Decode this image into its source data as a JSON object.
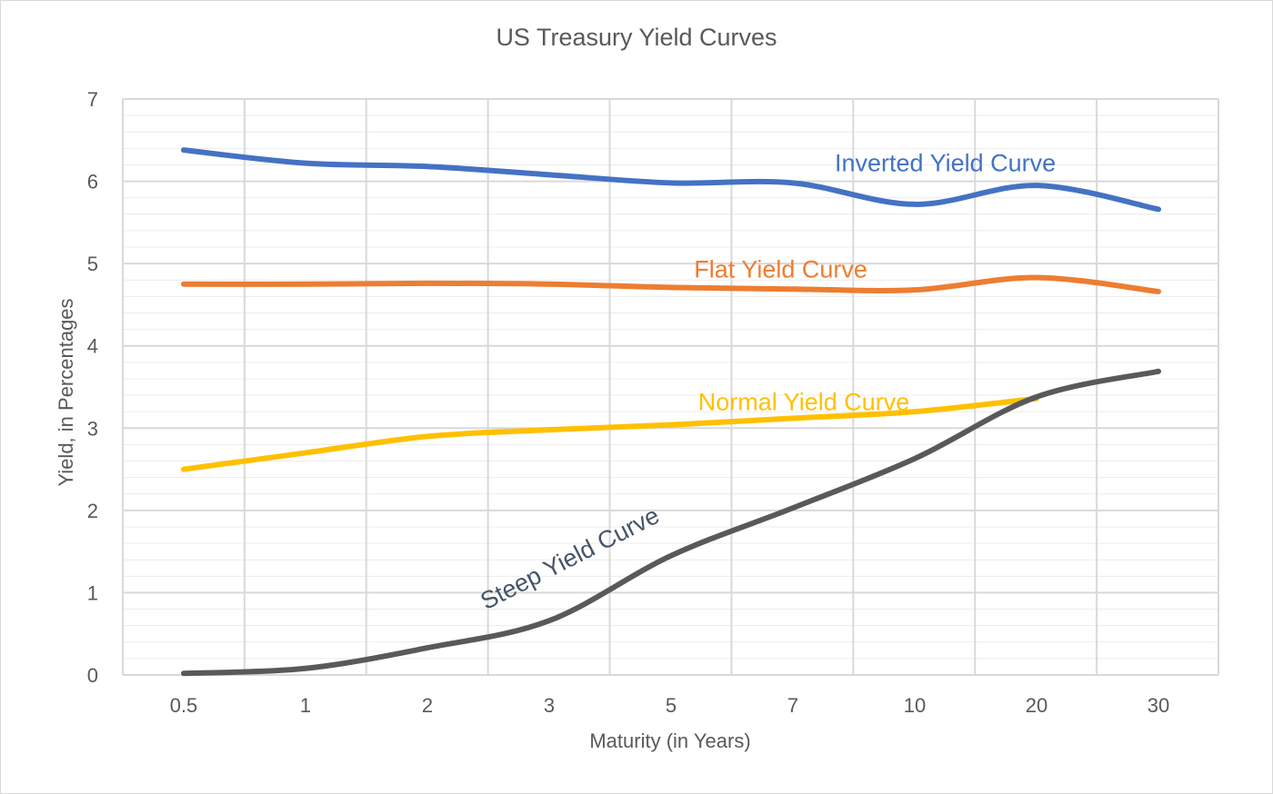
{
  "chart_data": {
    "type": "line",
    "title": "US Treasury Yield Curves",
    "xlabel": "Maturity (in Years)",
    "ylabel": "Yield, in Percentages",
    "categories": [
      "0.5",
      "1",
      "2",
      "3",
      "5",
      "7",
      "10",
      "20",
      "30"
    ],
    "ylim": [
      0,
      7
    ],
    "yticks": [
      "0",
      "1",
      "2",
      "3",
      "4",
      "5",
      "6",
      "7"
    ],
    "grid": true,
    "legend": "none",
    "series": [
      {
        "name": "Inverted Yield Curve",
        "color": "#4472c4",
        "x": [
          "0.5",
          "1",
          "2",
          "3",
          "5",
          "7",
          "10",
          "20",
          "30"
        ],
        "values": [
          6.38,
          6.22,
          6.18,
          6.08,
          5.98,
          5.98,
          5.72,
          5.95,
          5.66
        ]
      },
      {
        "name": "Flat Yield Curve",
        "color": "#ed7d31",
        "x": [
          "0.5",
          "1",
          "2",
          "3",
          "5",
          "7",
          "10",
          "20",
          "30"
        ],
        "values": [
          4.75,
          4.75,
          4.76,
          4.75,
          4.71,
          4.69,
          4.68,
          4.83,
          4.66
        ]
      },
      {
        "name": "Normal Yield Curve",
        "color": "#ffc000",
        "x": [
          "0.5",
          "1",
          "2",
          "3",
          "5",
          "7",
          "10",
          "20"
        ],
        "values": [
          2.5,
          2.7,
          2.9,
          2.98,
          3.04,
          3.12,
          3.2,
          3.36
        ]
      },
      {
        "name": "Steep Yield Curve",
        "color": "#595959",
        "x": [
          "0.5",
          "1",
          "2",
          "3",
          "5",
          "7",
          "10",
          "20",
          "30"
        ],
        "values": [
          0.02,
          0.08,
          0.33,
          0.66,
          1.45,
          2.03,
          2.63,
          3.38,
          3.69
        ]
      }
    ]
  }
}
